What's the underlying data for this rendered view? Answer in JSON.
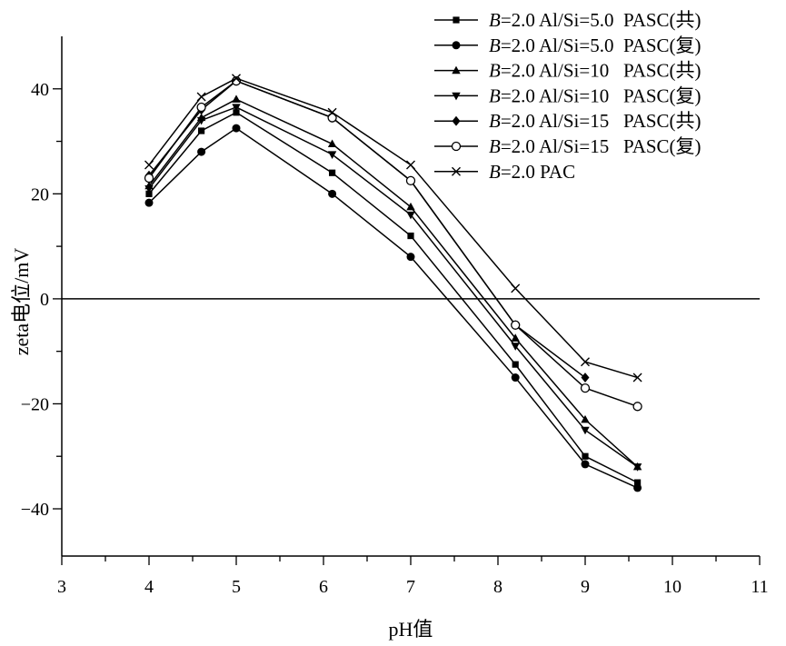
{
  "chart_data": {
    "type": "line",
    "title": "",
    "xlabel": "pH值",
    "ylabel": "zeta电位/mV",
    "xlim": [
      3,
      11
    ],
    "ylim": [
      -49,
      50
    ],
    "xticks": [
      3,
      4,
      5,
      6,
      7,
      8,
      9,
      10,
      11
    ],
    "yticks": [
      -40,
      -20,
      0,
      20,
      40
    ],
    "x": [
      4,
      4.6,
      5,
      6.1,
      7,
      8.2,
      9,
      9.6
    ],
    "zero_line": true,
    "legend_position": "top-right",
    "series": [
      {
        "name": "B=2.0 Al/Si=5.0  PASC(共)",
        "legend_italic": "B",
        "legend_rest": "=2.0 Al/Si=5.0  PASC(共)",
        "marker": "square",
        "values": [
          20,
          32,
          35.5,
          24,
          12,
          -12.5,
          -30,
          -35
        ]
      },
      {
        "name": "B=2.0 Al/Si=5.0  PASC(复)",
        "legend_italic": "B",
        "legend_rest": "=2.0 Al/Si=5.0  PASC(复)",
        "marker": "circle",
        "values": [
          18.3,
          28,
          32.5,
          20,
          8,
          -15,
          -31.5,
          -36
        ]
      },
      {
        "name": "B=2.0 Al/Si=10   PASC(共)",
        "legend_italic": "B",
        "legend_rest": "=2.0 Al/Si=10   PASC(共)",
        "marker": "triangle-up",
        "values": [
          21.5,
          34.5,
          38,
          29.5,
          17.5,
          -7.5,
          -23,
          -32
        ]
      },
      {
        "name": "B=2.0 Al/Si=10   PASC(复)",
        "legend_italic": "B",
        "legend_rest": "=2.0 Al/Si=10   PASC(复)",
        "marker": "triangle-down",
        "values": [
          21,
          34,
          36.5,
          27.5,
          16,
          -9,
          -25,
          -32
        ]
      },
      {
        "name": "B=2.0 Al/Si=15   PASC(共)",
        "legend_italic": "B",
        "legend_rest": "=2.0 Al/Si=15   PASC(共)",
        "marker": "diamond",
        "values": [
          23.5,
          36,
          41.5,
          34.5,
          22.5,
          -5,
          -15,
          null
        ]
      },
      {
        "name": "B=2.0 Al/Si=15   PASC(复)",
        "legend_italic": "B",
        "legend_rest": "=2.0 Al/Si=15   PASC(复)",
        "marker": "open-circle",
        "values": [
          23,
          36.5,
          41.5,
          34.5,
          22.5,
          -5,
          -17,
          -20.5
        ]
      },
      {
        "name": "B=2.0 PAC",
        "legend_italic": "B",
        "legend_rest": "=2.0 PAC",
        "marker": "x",
        "values": [
          25.5,
          38.5,
          42,
          35.5,
          25.5,
          2,
          -12,
          -15
        ]
      }
    ]
  }
}
